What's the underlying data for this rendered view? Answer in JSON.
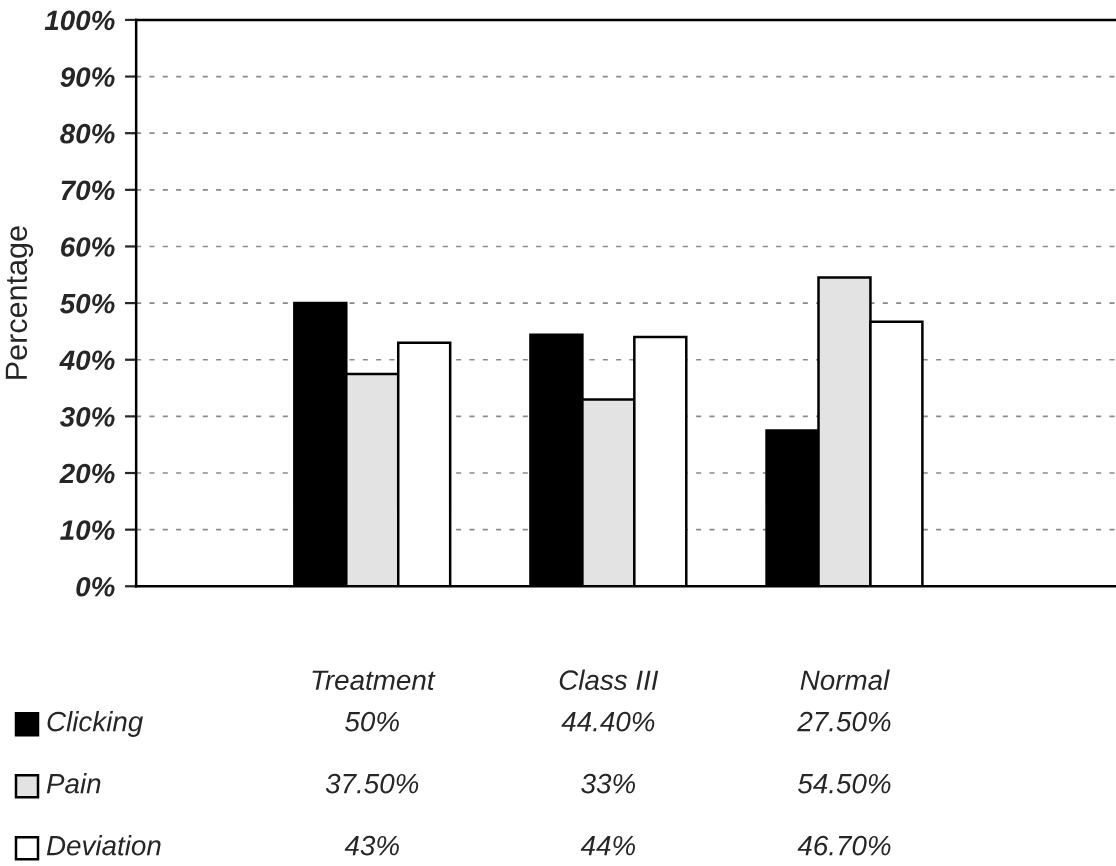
{
  "chart_data": {
    "type": "bar",
    "ylabel": "Percentage",
    "categories": [
      "Treatment",
      "Class III",
      "Normal"
    ],
    "series": [
      {
        "name": "Clicking",
        "color": "#000000",
        "values": [
          50,
          44.4,
          27.5
        ],
        "value_labels": [
          "50%",
          "44.40%",
          "27.50%"
        ]
      },
      {
        "name": "Pain",
        "color": "#e3e3e3",
        "values": [
          37.5,
          33,
          54.5
        ],
        "value_labels": [
          "37.50%",
          "33%",
          "54.50%"
        ]
      },
      {
        "name": "Deviation",
        "color": "#ffffff",
        "values": [
          43,
          44,
          46.7
        ],
        "value_labels": [
          "43%",
          "44%",
          "46.70%"
        ]
      }
    ],
    "ylim": [
      0,
      100
    ],
    "yticks": [
      {
        "value": 0,
        "label": "0%"
      },
      {
        "value": 10,
        "label": "10%"
      },
      {
        "value": 20,
        "label": "20%"
      },
      {
        "value": 30,
        "label": "30%"
      },
      {
        "value": 40,
        "label": "40%"
      },
      {
        "value": 50,
        "label": "50%"
      },
      {
        "value": 60,
        "label": "60%"
      },
      {
        "value": 70,
        "label": "70%"
      },
      {
        "value": 80,
        "label": "80%"
      },
      {
        "value": 90,
        "label": "90%"
      },
      {
        "value": 100,
        "label": "100%"
      }
    ],
    "grid": "y",
    "legend": "bottom"
  }
}
